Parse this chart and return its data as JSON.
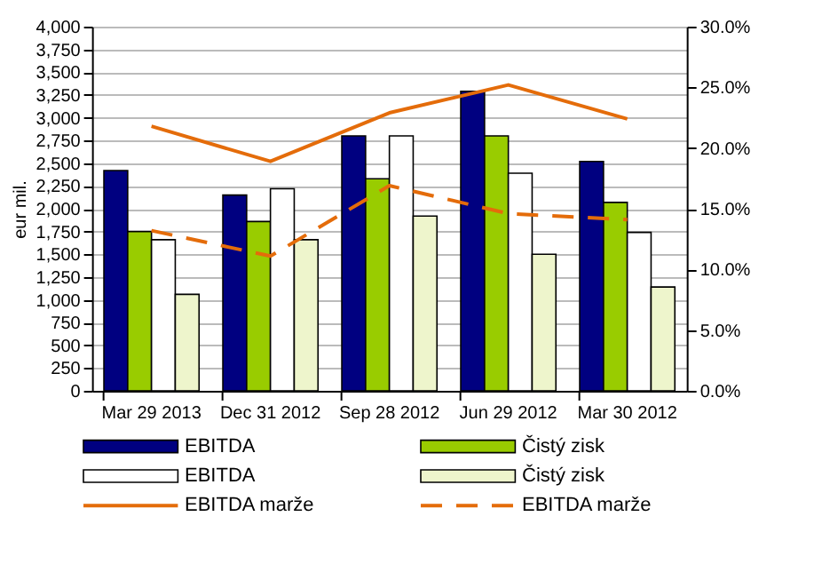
{
  "chart_data": {
    "type": "bar",
    "ylabel": "eur mil.",
    "categories": [
      "Mar 29 2013",
      "Dec 31 2012",
      "Sep 28 2012",
      "Jun 29 2012",
      "Mar 30 2012"
    ],
    "series": [
      {
        "name": "EBITDA",
        "color": "#000080",
        "values": [
          2420,
          2150,
          2800,
          3290,
          2520
        ]
      },
      {
        "name": "Čistý zisk",
        "color": "#99cc00",
        "values": [
          1750,
          1860,
          2330,
          2800,
          2070
        ]
      },
      {
        "name": "EBITDA",
        "color": "#ffffff",
        "values": [
          1660,
          2220,
          2800,
          2390,
          1740
        ]
      },
      {
        "name": "Čistý zisk",
        "color": "#eef5cc",
        "values": [
          1060,
          1660,
          1920,
          1500,
          1140
        ]
      },
      {
        "name": "EBITDA marže",
        "type": "line",
        "axis": "y2",
        "color": "#e46c0a",
        "line_style": "solid",
        "values": [
          21.8,
          18.9,
          22.9,
          25.2,
          22.4
        ]
      },
      {
        "name": "EBITDA marže",
        "type": "line",
        "axis": "y2",
        "color": "#e46c0a",
        "line_style": "dashed",
        "values": [
          13.2,
          11.1,
          16.9,
          14.6,
          14.1
        ]
      }
    ],
    "ylim": [
      0,
      4000
    ],
    "yticks": [
      0,
      250,
      500,
      750,
      {
        "value": 1000,
        "label": "1,000"
      },
      {
        "value": 1250,
        "label": "1,250"
      },
      {
        "value": 1500,
        "label": "1,500"
      },
      {
        "value": 1750,
        "label": "1,750"
      },
      {
        "value": 2000,
        "label": "2,000"
      },
      {
        "value": 2250,
        "label": "2,250"
      },
      {
        "value": 2500,
        "label": "2,500"
      },
      {
        "value": 2750,
        "label": "2,750"
      },
      {
        "value": 3000,
        "label": "3,000"
      },
      {
        "value": 3250,
        "label": "3,250"
      },
      {
        "value": 3500,
        "label": "3,500"
      },
      {
        "value": 3750,
        "label": "3,750"
      },
      {
        "value": 4000,
        "label": "4,000"
      }
    ],
    "y2lim": [
      0,
      30
    ],
    "y2ticks": [
      {
        "value": 0,
        "label": "0.0%"
      },
      {
        "value": 5,
        "label": "5.0%"
      },
      {
        "value": 10,
        "label": "10.0%"
      },
      {
        "value": 15,
        "label": "15.0%"
      },
      {
        "value": 20,
        "label": "20.0%"
      },
      {
        "value": 25,
        "label": "25.0%"
      },
      {
        "value": 30,
        "label": "30.0%"
      }
    ],
    "grid": "y",
    "legend": "bottom"
  }
}
